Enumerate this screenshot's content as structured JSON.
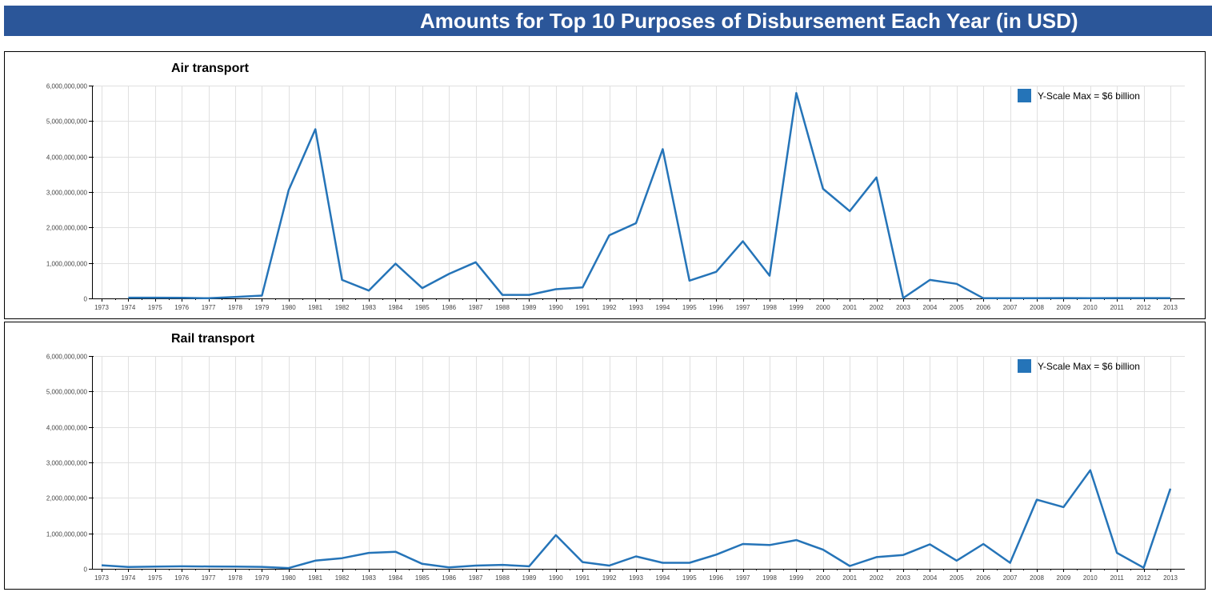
{
  "page_title": "Amounts for Top 10 Purposes of Disbursement Each Year (in USD)",
  "colors": {
    "title_bar": "#2b5699",
    "series": "#2574b8"
  },
  "chart_data": [
    {
      "type": "line",
      "title": "Air transport",
      "legend": {
        "label": "Y-Scale Max = $6 billion",
        "position": "top-right"
      },
      "grid": true,
      "xlim": [
        1973,
        2013
      ],
      "ylim": [
        0,
        6000000000
      ],
      "y_ticks": [
        0,
        1000000000,
        2000000000,
        3000000000,
        4000000000,
        5000000000,
        6000000000
      ],
      "y_tick_labels": [
        "0",
        "1,000,000,000",
        "2,000,000,000",
        "3,000,000,000",
        "4,000,000,000",
        "5,000,000,000",
        "6,000,000,000"
      ],
      "x": [
        1974,
        1975,
        1976,
        1977,
        1978,
        1979,
        1980,
        1981,
        1982,
        1983,
        1984,
        1985,
        1986,
        1987,
        1988,
        1989,
        1990,
        1991,
        1992,
        1993,
        1994,
        1995,
        1996,
        1997,
        1998,
        1999,
        2000,
        2001,
        2002,
        2003,
        2004,
        2005,
        2006,
        2007,
        2008,
        2009,
        2010,
        2011,
        2012,
        2013
      ],
      "values": [
        20000000,
        20000000,
        15000000,
        5000000,
        40000000,
        80000000,
        3050000000,
        4770000000,
        520000000,
        220000000,
        980000000,
        290000000,
        690000000,
        1020000000,
        100000000,
        100000000,
        260000000,
        310000000,
        1780000000,
        2120000000,
        4210000000,
        500000000,
        750000000,
        1610000000,
        640000000,
        5790000000,
        3090000000,
        2460000000,
        3410000000,
        10000000,
        520000000,
        410000000,
        5000000,
        5000000,
        5000000,
        10000000,
        5000000,
        10000000,
        10000000,
        10000000
      ]
    },
    {
      "type": "line",
      "title": "Rail transport",
      "legend": {
        "label": "Y-Scale Max = $6 billion",
        "position": "top-right"
      },
      "grid": true,
      "xlim": [
        1973,
        2013
      ],
      "ylim": [
        0,
        6000000000
      ],
      "y_ticks": [
        0,
        1000000000,
        2000000000,
        3000000000,
        4000000000,
        5000000000,
        6000000000
      ],
      "y_tick_labels": [
        "0",
        "1,000,000,000",
        "2,000,000,000",
        "3,000,000,000",
        "4,000,000,000",
        "5,000,000,000",
        "6,000,000,000"
      ],
      "x": [
        1973,
        1974,
        1975,
        1976,
        1977,
        1978,
        1979,
        1980,
        1981,
        1982,
        1983,
        1984,
        1985,
        1986,
        1987,
        1988,
        1989,
        1990,
        1991,
        1992,
        1993,
        1994,
        1995,
        1996,
        1997,
        1998,
        1999,
        2000,
        2001,
        2002,
        2003,
        2004,
        2005,
        2006,
        2007,
        2008,
        2009,
        2010,
        2011,
        2012,
        2013
      ],
      "values": [
        100000000,
        50000000,
        60000000,
        70000000,
        65000000,
        60000000,
        55000000,
        20000000,
        230000000,
        300000000,
        450000000,
        480000000,
        140000000,
        40000000,
        90000000,
        110000000,
        70000000,
        950000000,
        190000000,
        90000000,
        350000000,
        170000000,
        170000000,
        400000000,
        700000000,
        670000000,
        810000000,
        540000000,
        80000000,
        330000000,
        390000000,
        690000000,
        230000000,
        700000000,
        170000000,
        1950000000,
        1740000000,
        2780000000,
        450000000,
        30000000,
        2260000000
      ]
    }
  ]
}
